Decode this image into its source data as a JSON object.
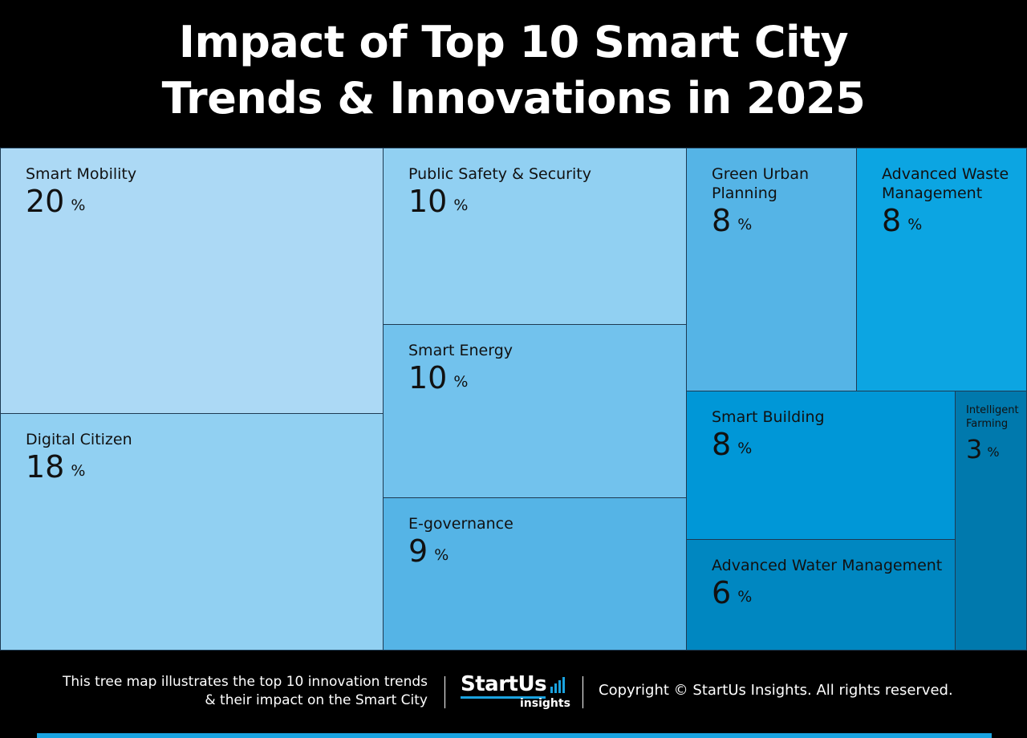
{
  "title": {
    "line1": "Impact of Top 10 Smart City",
    "line2": "Trends & Innovations in 2025"
  },
  "chart_data": {
    "type": "treemap",
    "title": "Impact of Top 10 Smart City Trends & Innovations in 2025",
    "unit": "%",
    "items": [
      {
        "name": "Smart Mobility",
        "value": 20,
        "color": "#acd9f5"
      },
      {
        "name": "Digital Citizen",
        "value": 18,
        "color": "#91d0f2"
      },
      {
        "name": "Public Safety & Security",
        "value": 10,
        "color": "#91d0f2"
      },
      {
        "name": "Smart Energy",
        "value": 10,
        "color": "#72c2ed"
      },
      {
        "name": "E-governance",
        "value": 9,
        "color": "#55b4e6"
      },
      {
        "name": "Green Urban Planning",
        "value": 8,
        "color": "#55b4e6"
      },
      {
        "name": "Advanced Waste Management",
        "value": 8,
        "color": "#0ca5e2"
      },
      {
        "name": "Smart Building",
        "value": 8,
        "color": "#0097d7"
      },
      {
        "name": "Advanced Water Management",
        "value": 6,
        "color": "#0087c1"
      },
      {
        "name": "Intelligent Farming",
        "value": 3,
        "color": "#0079ad"
      }
    ]
  },
  "footer": {
    "description_line1": "This tree map illustrates the top 10 innovation trends",
    "description_line2": "& their impact on the Smart City",
    "logo_brand": "StartUs",
    "logo_sub": "insights",
    "copyright": "Copyright © StartUs Insights. All rights reserved.",
    "accent_color": "#1aa3e0"
  }
}
